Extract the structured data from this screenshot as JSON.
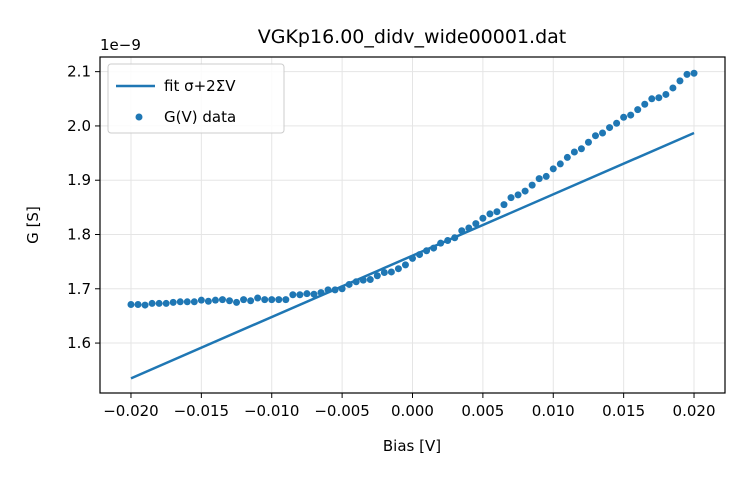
{
  "chart_data": {
    "type": "scatter",
    "title": "VGKp16.00_didv_wide00001.dat",
    "xlabel": "Bias [V]",
    "ylabel": "G [S]",
    "y_offset_label": "1e−9",
    "xlim": [
      -0.0222,
      0.0222
    ],
    "ylim": [
      1.508,
      2.127
    ],
    "x_ticks": [
      -0.02,
      -0.015,
      -0.01,
      -0.005,
      0.0,
      0.005,
      0.01,
      0.015,
      0.02
    ],
    "x_tick_labels": [
      "−0.020",
      "−0.015",
      "−0.010",
      "−0.005",
      "0.000",
      "0.005",
      "0.010",
      "0.015",
      "0.020"
    ],
    "y_ticks": [
      1.6,
      1.7,
      1.8,
      1.9,
      2.0,
      2.1
    ],
    "y_tick_labels": [
      "1.6",
      "1.7",
      "1.8",
      "1.9",
      "2.0",
      "2.1"
    ],
    "y_scale_note": "values in units of 1e-9 S",
    "grid": true,
    "legend_position": "top-left",
    "colors": {
      "series": "#1f77b4",
      "grid": "#e5e5e5",
      "axis": "#000000"
    },
    "series": [
      {
        "name": "fit σ+2ΣV",
        "kind": "line",
        "x": [
          -0.02,
          0.02
        ],
        "y": [
          1.535,
          1.987
        ]
      },
      {
        "name": "G(V) data",
        "kind": "scatter",
        "points": [
          [
            -0.02,
            1.671
          ],
          [
            -0.0195,
            1.671
          ],
          [
            -0.019,
            1.67
          ],
          [
            -0.0185,
            1.673
          ],
          [
            -0.018,
            1.673
          ],
          [
            -0.0175,
            1.673
          ],
          [
            -0.017,
            1.675
          ],
          [
            -0.0165,
            1.676
          ],
          [
            -0.016,
            1.676
          ],
          [
            -0.0155,
            1.676
          ],
          [
            -0.015,
            1.679
          ],
          [
            -0.0145,
            1.677
          ],
          [
            -0.014,
            1.679
          ],
          [
            -0.0135,
            1.68
          ],
          [
            -0.013,
            1.678
          ],
          [
            -0.0125,
            1.675
          ],
          [
            -0.012,
            1.68
          ],
          [
            -0.0115,
            1.678
          ],
          [
            -0.011,
            1.683
          ],
          [
            -0.0105,
            1.68
          ],
          [
            -0.01,
            1.68
          ],
          [
            -0.0095,
            1.68
          ],
          [
            -0.009,
            1.68
          ],
          [
            -0.0085,
            1.689
          ],
          [
            -0.008,
            1.689
          ],
          [
            -0.0075,
            1.691
          ],
          [
            -0.007,
            1.69
          ],
          [
            -0.0065,
            1.693
          ],
          [
            -0.006,
            1.698
          ],
          [
            -0.0055,
            1.698
          ],
          [
            -0.005,
            1.7
          ],
          [
            -0.0045,
            1.708
          ],
          [
            -0.004,
            1.713
          ],
          [
            -0.0035,
            1.716
          ],
          [
            -0.003,
            1.717
          ],
          [
            -0.0025,
            1.724
          ],
          [
            -0.002,
            1.73
          ],
          [
            -0.0015,
            1.731
          ],
          [
            -0.001,
            1.737
          ],
          [
            -0.0005,
            1.744
          ],
          [
            0.0,
            1.756
          ],
          [
            0.0005,
            1.763
          ],
          [
            0.001,
            1.77
          ],
          [
            0.0015,
            1.775
          ],
          [
            0.002,
            1.784
          ],
          [
            0.0025,
            1.789
          ],
          [
            0.003,
            1.794
          ],
          [
            0.0035,
            1.807
          ],
          [
            0.004,
            1.812
          ],
          [
            0.0045,
            1.82
          ],
          [
            0.005,
            1.83
          ],
          [
            0.0055,
            1.838
          ],
          [
            0.006,
            1.842
          ],
          [
            0.0065,
            1.855
          ],
          [
            0.007,
            1.868
          ],
          [
            0.0075,
            1.873
          ],
          [
            0.008,
            1.88
          ],
          [
            0.0085,
            1.891
          ],
          [
            0.009,
            1.903
          ],
          [
            0.0095,
            1.907
          ],
          [
            0.01,
            1.921
          ],
          [
            0.0105,
            1.93
          ],
          [
            0.011,
            1.942
          ],
          [
            0.0115,
            1.952
          ],
          [
            0.012,
            1.958
          ],
          [
            0.0125,
            1.97
          ],
          [
            0.013,
            1.982
          ],
          [
            0.0135,
            1.987
          ],
          [
            0.014,
            1.997
          ],
          [
            0.0145,
            2.005
          ],
          [
            0.015,
            2.016
          ],
          [
            0.0155,
            2.02
          ],
          [
            0.016,
            2.03
          ],
          [
            0.0165,
            2.04
          ],
          [
            0.017,
            2.05
          ],
          [
            0.0175,
            2.052
          ],
          [
            0.018,
            2.058
          ],
          [
            0.0185,
            2.07
          ],
          [
            0.019,
            2.083
          ],
          [
            0.0195,
            2.095
          ],
          [
            0.02,
            2.097
          ]
        ]
      }
    ]
  }
}
